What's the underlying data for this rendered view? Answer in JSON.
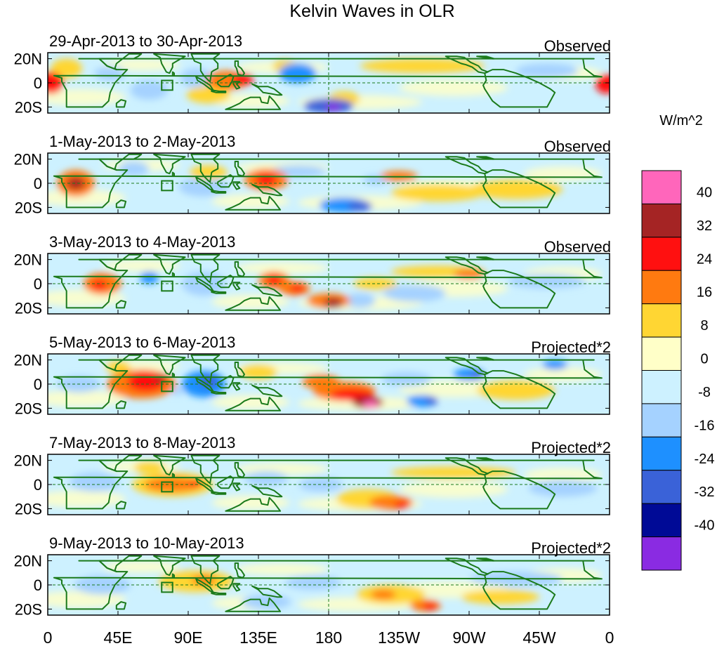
{
  "chart_data": {
    "type": "heatmap",
    "title": "Kelvin Waves in OLR",
    "variable": "OLR anomaly",
    "units": "W/m^2",
    "x_ticks": [
      "0",
      "45E",
      "90E",
      "135E",
      "180",
      "135W",
      "90W",
      "45W",
      "0"
    ],
    "y_ticks": [
      "20N",
      "0",
      "20S"
    ],
    "xlim": [
      0,
      360
    ],
    "ylim": [
      -25,
      25
    ],
    "colorbar": {
      "label": "W/m^2",
      "levels": [
        "40",
        "32",
        "24",
        "16",
        "8",
        "0",
        "-8",
        "-16",
        "-24",
        "-32",
        "-40"
      ],
      "colors": [
        "#ff66bb",
        "#a52424",
        "#ff1010",
        "#ff7a10",
        "#ffd633",
        "#ffffc8",
        "#cdf1ff",
        "#a5d2ff",
        "#1e90ff",
        "#3a62d8",
        "#000a96",
        "#8a2be2"
      ]
    },
    "panels": [
      {
        "date_range": "29-Apr-2013 to 30-Apr-2013",
        "label": "Observed",
        "blobs": [
          {
            "lon": 2,
            "lat": 0,
            "rlon": 8,
            "rlat": 9,
            "value": 24
          },
          {
            "lon": 358,
            "lat": -1,
            "rlon": 7,
            "rlat": 8,
            "value": 24
          },
          {
            "lon": 12,
            "lat": 12,
            "rlon": 10,
            "rlat": 8,
            "value": 8
          },
          {
            "lon": 115,
            "lat": 2,
            "rlon": 14,
            "rlat": 8,
            "value": 16
          },
          {
            "lon": 125,
            "lat": 3,
            "rlon": 7,
            "rlat": 5,
            "value": 24
          },
          {
            "lon": 160,
            "lat": 8,
            "rlon": 12,
            "rlat": 8,
            "value": -16
          },
          {
            "lon": 152,
            "lat": 14,
            "rlon": 8,
            "rlat": 5,
            "value": 8
          },
          {
            "lon": 180,
            "lat": -19,
            "rlon": 16,
            "rlat": 6,
            "value": -24
          },
          {
            "lon": 183,
            "lat": -20,
            "rlon": 5,
            "rlat": 3,
            "value": -40
          },
          {
            "lon": 190,
            "lat": -13,
            "rlon": 10,
            "rlat": 6,
            "value": 8
          },
          {
            "lon": 240,
            "lat": 14,
            "rlon": 40,
            "rlat": 6,
            "value": 8
          },
          {
            "lon": 103,
            "lat": -10,
            "rlon": 14,
            "rlat": 7,
            "value": 8
          },
          {
            "lon": 95,
            "lat": 4,
            "rlon": 10,
            "rlat": 8,
            "value": -8
          },
          {
            "lon": 65,
            "lat": -6,
            "rlon": 12,
            "rlat": 8,
            "value": -8
          },
          {
            "lon": 320,
            "lat": 10,
            "rlon": 20,
            "rlat": 6,
            "value": -8
          },
          {
            "lon": 40,
            "lat": 8,
            "rlon": 10,
            "rlat": 6,
            "value": -8
          }
        ]
      },
      {
        "date_range": "1-May-2013 to 2-May-2013",
        "label": "Observed",
        "blobs": [
          {
            "lon": 18,
            "lat": 0,
            "rlon": 12,
            "rlat": 11,
            "value": 16
          },
          {
            "lon": 18,
            "lat": 0,
            "rlon": 6,
            "rlat": 5,
            "value": 32
          },
          {
            "lon": 140,
            "lat": 3,
            "rlon": 14,
            "rlat": 9,
            "value": 16
          },
          {
            "lon": 140,
            "lat": 3,
            "rlon": 7,
            "rlat": 5,
            "value": 24
          },
          {
            "lon": 210,
            "lat": 3,
            "rlon": 8,
            "rlat": 4,
            "value": -8
          },
          {
            "lon": 225,
            "lat": 6,
            "rlon": 12,
            "rlat": 4,
            "value": 16
          },
          {
            "lon": 190,
            "lat": -18,
            "rlon": 16,
            "rlat": 6,
            "value": -16
          },
          {
            "lon": 200,
            "lat": -19,
            "rlon": 8,
            "rlat": 4,
            "value": -24
          },
          {
            "lon": 100,
            "lat": -3,
            "rlon": 16,
            "rlat": 8,
            "value": -8
          },
          {
            "lon": 103,
            "lat": 9,
            "rlon": 12,
            "rlat": 6,
            "value": 8
          },
          {
            "lon": 250,
            "lat": -8,
            "rlon": 30,
            "rlat": 7,
            "value": 8
          },
          {
            "lon": 160,
            "lat": 10,
            "rlon": 18,
            "rlat": 5,
            "value": -8
          },
          {
            "lon": 300,
            "lat": -5,
            "rlon": 30,
            "rlat": 8,
            "value": 8
          },
          {
            "lon": 55,
            "lat": 12,
            "rlon": 10,
            "rlat": 6,
            "value": -8
          }
        ]
      },
      {
        "date_range": "3-May-2013 to 4-May-2013",
        "label": "Observed",
        "blobs": [
          {
            "lon": 35,
            "lat": 0,
            "rlon": 12,
            "rlat": 9,
            "value": 16
          },
          {
            "lon": 33,
            "lat": -1,
            "rlon": 5,
            "rlat": 4,
            "value": 24
          },
          {
            "lon": 65,
            "lat": 5,
            "rlon": 6,
            "rlat": 5,
            "value": -16
          },
          {
            "lon": 145,
            "lat": 3,
            "rlon": 10,
            "rlat": 7,
            "value": 16
          },
          {
            "lon": 145,
            "lat": 3,
            "rlon": 5,
            "rlat": 4,
            "value": 24
          },
          {
            "lon": 158,
            "lat": -4,
            "rlon": 10,
            "rlat": 6,
            "value": 16
          },
          {
            "lon": 160,
            "lat": -4,
            "rlon": 5,
            "rlat": 3,
            "value": 24
          },
          {
            "lon": 180,
            "lat": -14,
            "rlon": 14,
            "rlat": 6,
            "value": 16
          },
          {
            "lon": 183,
            "lat": -16,
            "rlon": 6,
            "rlat": 4,
            "value": 32
          },
          {
            "lon": 200,
            "lat": -14,
            "rlon": 10,
            "rlat": 6,
            "value": -8
          },
          {
            "lon": 270,
            "lat": 8,
            "rlon": 10,
            "rlat": 4,
            "value": 16
          },
          {
            "lon": 235,
            "lat": -8,
            "rlon": 20,
            "rlat": 7,
            "value": -8
          },
          {
            "lon": 100,
            "lat": 0,
            "rlon": 14,
            "rlat": 10,
            "value": -8
          },
          {
            "lon": 250,
            "lat": 10,
            "rlon": 30,
            "rlat": 5,
            "value": 8
          },
          {
            "lon": 210,
            "lat": 0,
            "rlon": 14,
            "rlat": 5,
            "value": 8
          },
          {
            "lon": 320,
            "lat": 2,
            "rlon": 25,
            "rlat": 6,
            "value": -8
          }
        ]
      },
      {
        "date_range": "5-May-2013 to 6-May-2013",
        "label": "Projected*2",
        "blobs": [
          {
            "lon": 60,
            "lat": 0,
            "rlon": 22,
            "rlat": 12,
            "value": 16
          },
          {
            "lon": 63,
            "lat": 2,
            "rlon": 12,
            "rlat": 8,
            "value": 24
          },
          {
            "lon": 72,
            "lat": 4,
            "rlon": 4,
            "rlat": 3,
            "value": 32
          },
          {
            "lon": 45,
            "lat": 14,
            "rlon": 8,
            "rlat": 5,
            "value": 8
          },
          {
            "lon": 100,
            "lat": 0,
            "rlon": 14,
            "rlat": 11,
            "value": -16
          },
          {
            "lon": 103,
            "lat": 2,
            "rlon": 6,
            "rlat": 5,
            "value": -24
          },
          {
            "lon": 83,
            "lat": -6,
            "rlon": 4,
            "rlat": 3,
            "value": -8
          },
          {
            "lon": 175,
            "lat": 2,
            "rlon": 12,
            "rlat": 6,
            "value": 16
          },
          {
            "lon": 190,
            "lat": -6,
            "rlon": 20,
            "rlat": 8,
            "value": 16
          },
          {
            "lon": 195,
            "lat": -9,
            "rlon": 14,
            "rlat": 5,
            "value": 24
          },
          {
            "lon": 205,
            "lat": -15,
            "rlon": 10,
            "rlat": 5,
            "value": 32
          },
          {
            "lon": 207,
            "lat": -17,
            "rlon": 5,
            "rlat": 3,
            "value": 40
          },
          {
            "lon": 240,
            "lat": -14,
            "rlon": 10,
            "rlat": 5,
            "value": -16
          },
          {
            "lon": 246,
            "lat": -14,
            "rlon": 4,
            "rlat": 3,
            "value": -24
          },
          {
            "lon": 230,
            "lat": 4,
            "rlon": 16,
            "rlat": 6,
            "value": -8
          },
          {
            "lon": 270,
            "lat": 8,
            "rlon": 10,
            "rlat": 5,
            "value": -16
          },
          {
            "lon": 275,
            "lat": 8,
            "rlon": 4,
            "rlat": 3,
            "value": -24
          },
          {
            "lon": 325,
            "lat": 16,
            "rlon": 8,
            "rlat": 4,
            "value": -16
          },
          {
            "lon": 135,
            "lat": 10,
            "rlon": 12,
            "rlat": 6,
            "value": 8
          },
          {
            "lon": 300,
            "lat": -5,
            "rlon": 25,
            "rlat": 8,
            "value": 8
          },
          {
            "lon": 20,
            "lat": 0,
            "rlon": 14,
            "rlat": 7,
            "value": -8
          }
        ]
      },
      {
        "date_range": "7-May-2013 to 8-May-2013",
        "label": "Projected*2",
        "blobs": [
          {
            "lon": 80,
            "lat": 0,
            "rlon": 26,
            "rlat": 10,
            "value": 8
          },
          {
            "lon": 80,
            "lat": 0,
            "rlon": 18,
            "rlat": 6,
            "value": 16
          },
          {
            "lon": 95,
            "lat": 1,
            "rlon": 5,
            "rlat": 3,
            "value": 24
          },
          {
            "lon": 65,
            "lat": 14,
            "rlon": 10,
            "rlat": 5,
            "value": 8
          },
          {
            "lon": 205,
            "lat": -12,
            "rlon": 20,
            "rlat": 8,
            "value": 8
          },
          {
            "lon": 220,
            "lat": -15,
            "rlon": 14,
            "rlat": 6,
            "value": 16
          },
          {
            "lon": 227,
            "lat": -17,
            "rlon": 5,
            "rlat": 3,
            "value": 24
          },
          {
            "lon": 140,
            "lat": 5,
            "rlon": 14,
            "rlat": 6,
            "value": -8
          },
          {
            "lon": 260,
            "lat": 10,
            "rlon": 40,
            "rlat": 5,
            "value": 8
          },
          {
            "lon": 30,
            "lat": 2,
            "rlon": 16,
            "rlat": 8,
            "value": -8
          },
          {
            "lon": 330,
            "lat": -3,
            "rlon": 22,
            "rlat": 7,
            "value": -8
          },
          {
            "lon": 175,
            "lat": 0,
            "rlon": 14,
            "rlat": 6,
            "value": -8
          }
        ]
      },
      {
        "date_range": "9-May-2013 to 10-May-2013",
        "label": "Projected*2",
        "blobs": [
          {
            "lon": 95,
            "lat": 3,
            "rlon": 24,
            "rlat": 9,
            "value": 8
          },
          {
            "lon": 100,
            "lat": 4,
            "rlon": 8,
            "rlat": 4,
            "value": 16
          },
          {
            "lon": 220,
            "lat": -8,
            "rlon": 22,
            "rlat": 8,
            "value": 8
          },
          {
            "lon": 215,
            "lat": -8,
            "rlon": 8,
            "rlat": 4,
            "value": 16
          },
          {
            "lon": 242,
            "lat": -17,
            "rlon": 10,
            "rlat": 5,
            "value": 16
          },
          {
            "lon": 245,
            "lat": -18,
            "rlon": 5,
            "rlat": 3,
            "value": 24
          },
          {
            "lon": 170,
            "lat": 2,
            "rlon": 18,
            "rlat": 6,
            "value": -8
          },
          {
            "lon": 35,
            "lat": 0,
            "rlon": 18,
            "rlat": 8,
            "value": -8
          },
          {
            "lon": 300,
            "lat": 5,
            "rlon": 30,
            "rlat": 6,
            "value": -8
          },
          {
            "lon": 290,
            "lat": -10,
            "rlon": 25,
            "rlat": 6,
            "value": 8
          },
          {
            "lon": 140,
            "lat": -14,
            "rlon": 16,
            "rlat": 6,
            "value": -8
          }
        ]
      }
    ]
  }
}
